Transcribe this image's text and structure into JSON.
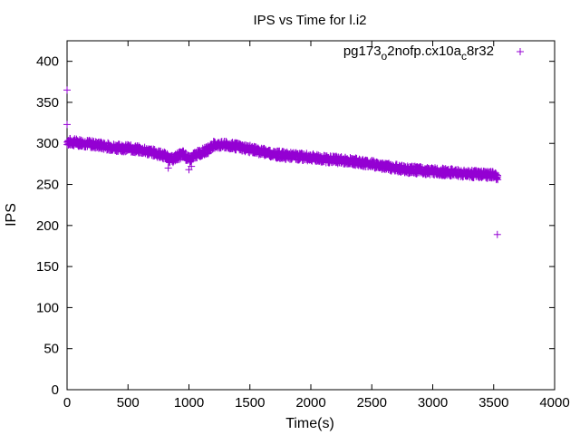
{
  "chart_data": {
    "type": "scatter",
    "title": "IPS vs Time for l.i2",
    "xlabel": "Time(s)",
    "ylabel": "IPS",
    "xlim": [
      0,
      4000
    ],
    "ylim": [
      0,
      425
    ],
    "xticks": [
      0,
      500,
      1000,
      1500,
      2000,
      2500,
      3000,
      3500,
      4000
    ],
    "yticks": [
      0,
      50,
      100,
      150,
      200,
      250,
      300,
      350,
      400
    ],
    "grid": false,
    "legend_position": "top-right",
    "marker": "+",
    "color": "#9400d3",
    "series": [
      {
        "name_parts": [
          "pg173",
          "o",
          "2nofp.cx10a",
          "c",
          "8r32"
        ],
        "outliers": [
          [
            0,
            365
          ],
          [
            0,
            323
          ],
          [
            3530,
            189
          ]
        ],
        "trend": [
          [
            0,
            302
          ],
          [
            100,
            301
          ],
          [
            200,
            299
          ],
          [
            300,
            297
          ],
          [
            400,
            295
          ],
          [
            500,
            294
          ],
          [
            600,
            292
          ],
          [
            700,
            289
          ],
          [
            800,
            285
          ],
          [
            850,
            280
          ],
          [
            900,
            284
          ],
          [
            950,
            287
          ],
          [
            1000,
            280
          ],
          [
            1050,
            286
          ],
          [
            1100,
            289
          ],
          [
            1150,
            292
          ],
          [
            1200,
            298
          ],
          [
            1300,
            298
          ],
          [
            1400,
            296
          ],
          [
            1500,
            293
          ],
          [
            1600,
            290
          ],
          [
            1700,
            287
          ],
          [
            1800,
            285
          ],
          [
            1900,
            284
          ],
          [
            2000,
            283
          ],
          [
            2100,
            281
          ],
          [
            2200,
            280
          ],
          [
            2300,
            279
          ],
          [
            2400,
            277
          ],
          [
            2500,
            275
          ],
          [
            2600,
            272
          ],
          [
            2700,
            270
          ],
          [
            2800,
            268
          ],
          [
            2900,
            267
          ],
          [
            3000,
            266
          ],
          [
            3100,
            265
          ],
          [
            3200,
            264
          ],
          [
            3300,
            263
          ],
          [
            3400,
            262
          ],
          [
            3500,
            261
          ],
          [
            3530,
            259
          ]
        ],
        "dips": [
          [
            830,
            270
          ],
          [
            1000,
            268
          ],
          [
            1020,
            272
          ]
        ]
      }
    ]
  }
}
